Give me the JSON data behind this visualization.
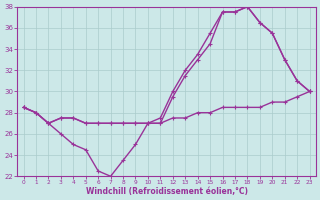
{
  "xlabel": "Windchill (Refroidissement éolien,°C)",
  "x": [
    0,
    1,
    2,
    3,
    4,
    5,
    6,
    7,
    8,
    9,
    10,
    11,
    12,
    13,
    14,
    15,
    16,
    17,
    18,
    19,
    20,
    21,
    22,
    23
  ],
  "line1": [
    28.5,
    28.0,
    27.0,
    27.5,
    27.5,
    27.0,
    27.0,
    27.0,
    27.0,
    27.0,
    27.0,
    27.0,
    27.5,
    27.5,
    28.0,
    28.0,
    28.5,
    28.5,
    28.5,
    28.5,
    29.0,
    29.0,
    29.5,
    30.0
  ],
  "line2": [
    28.5,
    28.0,
    27.0,
    26.0,
    25.0,
    24.5,
    22.5,
    22.0,
    23.5,
    25.0,
    27.0,
    27.0,
    29.5,
    31.5,
    33.0,
    34.5,
    37.5,
    37.5,
    38.0,
    36.5,
    35.5,
    33.0,
    31.0,
    30.0
  ],
  "line3": [
    28.5,
    28.0,
    27.0,
    27.5,
    27.5,
    27.0,
    27.0,
    27.0,
    27.0,
    27.0,
    27.0,
    27.5,
    30.0,
    32.0,
    33.5,
    35.5,
    37.5,
    37.5,
    38.0,
    36.5,
    35.5,
    33.0,
    31.0,
    30.0
  ],
  "ylim": [
    22,
    38
  ],
  "xlim": [
    -0.5,
    23.5
  ],
  "yticks": [
    22,
    24,
    26,
    28,
    30,
    32,
    34,
    36,
    38
  ],
  "xticks": [
    0,
    1,
    2,
    3,
    4,
    5,
    6,
    7,
    8,
    9,
    10,
    11,
    12,
    13,
    14,
    15,
    16,
    17,
    18,
    19,
    20,
    21,
    22,
    23
  ],
  "line_color": "#993399",
  "bg_color": "#cce8e8",
  "grid_color": "#aacccc",
  "marker": "+",
  "markersize": 3,
  "linewidth": 1.0
}
